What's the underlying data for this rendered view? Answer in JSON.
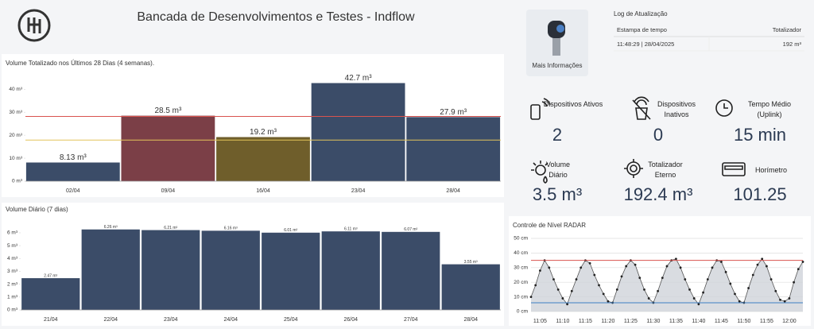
{
  "header": {
    "title": "Bancada de Desenvolvimentos e Testes - Indflow"
  },
  "device_card": {
    "link": "Mais Informações"
  },
  "log": {
    "title": "Log de Atualização",
    "columns": [
      "Estampa de tempo",
      "Totalizador"
    ],
    "rows": [
      [
        "11:48:29 | 28/04/2025",
        "192 m³"
      ]
    ]
  },
  "stats": [
    {
      "label": "Dispositivos Ativos",
      "value": "2"
    },
    {
      "label": "Dispositivos Inativos",
      "value": "0"
    },
    {
      "label": "Tempo Médio (Uplink)",
      "value": "15 min"
    },
    {
      "label": "Volume Diário",
      "value": "3.5 m³"
    },
    {
      "label": "Totalizador Eterno",
      "value": "192.4 m³"
    },
    {
      "label": "Horímetro",
      "value": "101.25"
    }
  ],
  "chart_data": [
    {
      "type": "bar",
      "title": "Volume Totalizado nos Últimos 28 Dias (4 semanas).",
      "categories": [
        "02/04",
        "09/04",
        "16/04",
        "23/04",
        "28/04"
      ],
      "values": [
        8.13,
        28.5,
        19.2,
        42.7,
        27.9
      ],
      "value_labels": [
        "8.13 m³",
        "28.5 m³",
        "19.2 m³",
        "42.7 m³",
        "27.9 m³"
      ],
      "colors": [
        "#3b4c68",
        "#7b3f47",
        "#6f5e2b",
        "#3b4c68",
        "#3b4c68"
      ],
      "ylim": [
        0,
        46
      ],
      "yticks": [
        {
          "value": 0,
          "label": "0 m³"
        },
        {
          "value": 10,
          "label": "10 m³"
        },
        {
          "value": 20,
          "label": "20 m³"
        },
        {
          "value": 30,
          "label": "30 m³"
        },
        {
          "value": 40,
          "label": "40 m³"
        }
      ],
      "reference_lines": [
        {
          "value": 28.2,
          "color": "#d9534f"
        },
        {
          "value": 17.9,
          "color": "#e3c35a"
        }
      ],
      "grid": false
    },
    {
      "type": "bar",
      "title": "Volume Diário (7 dias)",
      "categories": [
        "21/04",
        "22/04",
        "23/04",
        "24/04",
        "25/04",
        "26/04",
        "27/04",
        "28/04"
      ],
      "values": [
        2.47,
        6.26,
        6.21,
        6.16,
        6.01,
        6.11,
        6.07,
        3.55
      ],
      "value_labels": [
        "2.47 m³",
        "6.26 m³",
        "6.21 m³",
        "6.16 m³",
        "6.01 m³",
        "6.11 m³",
        "6.07 m³",
        "3.55 m³"
      ],
      "color": "#3b4c68",
      "ylim": [
        0,
        6.8
      ],
      "yticks": [
        {
          "value": 0,
          "label": "0 m³"
        },
        {
          "value": 1,
          "label": "1 m³"
        },
        {
          "value": 2,
          "label": "2 m³"
        },
        {
          "value": 3,
          "label": "3 m³"
        },
        {
          "value": 4,
          "label": "4 m³"
        },
        {
          "value": 5,
          "label": "5 m³"
        },
        {
          "value": 6,
          "label": "6 m³"
        }
      ],
      "grid": false
    },
    {
      "type": "line",
      "title": "Controle de Nível RADAR",
      "categories": [
        null,
        null,
        "11:05",
        null,
        null,
        null,
        null,
        "11:10",
        null,
        null,
        null,
        null,
        "11:15",
        null,
        null,
        null,
        null,
        "11:20",
        null,
        null,
        null,
        null,
        "11:25",
        null,
        null,
        null,
        null,
        "11:30",
        null,
        null,
        null,
        null,
        "11:35",
        null,
        null,
        null,
        null,
        "11:40",
        null,
        null,
        null,
        null,
        "11:45",
        null,
        null,
        null,
        null,
        "11:50",
        null,
        null,
        null,
        null,
        "11:55",
        null,
        null,
        null,
        null,
        "12:00",
        null,
        null,
        null
      ],
      "values": [
        10,
        18,
        28,
        35,
        30,
        22,
        15,
        9,
        5,
        14,
        22,
        30,
        35,
        33,
        25,
        18,
        12,
        7,
        6,
        15,
        24,
        31,
        35,
        32,
        23,
        15,
        9,
        6,
        14,
        23,
        31,
        35,
        36,
        30,
        22,
        15,
        9,
        5,
        13,
        22,
        30,
        35,
        34,
        27,
        19,
        12,
        7,
        6,
        16,
        25,
        32,
        36,
        31,
        22,
        14,
        8,
        7,
        9,
        20,
        29,
        34
      ],
      "color": "#555555",
      "ylim": [
        0,
        50
      ],
      "yticks": [
        {
          "value": 0,
          "label": "0 cm"
        },
        {
          "value": 10,
          "label": "10 cm"
        },
        {
          "value": 20,
          "label": "20 cm"
        },
        {
          "value": 30,
          "label": "30 cm"
        },
        {
          "value": 40,
          "label": "40 cm"
        },
        {
          "value": 50,
          "label": "50 cm"
        }
      ],
      "reference_lines": [
        {
          "value": 35,
          "color": "#d9534f"
        },
        {
          "value": 6,
          "color": "#3d7fc4"
        }
      ],
      "grid": true
    }
  ]
}
